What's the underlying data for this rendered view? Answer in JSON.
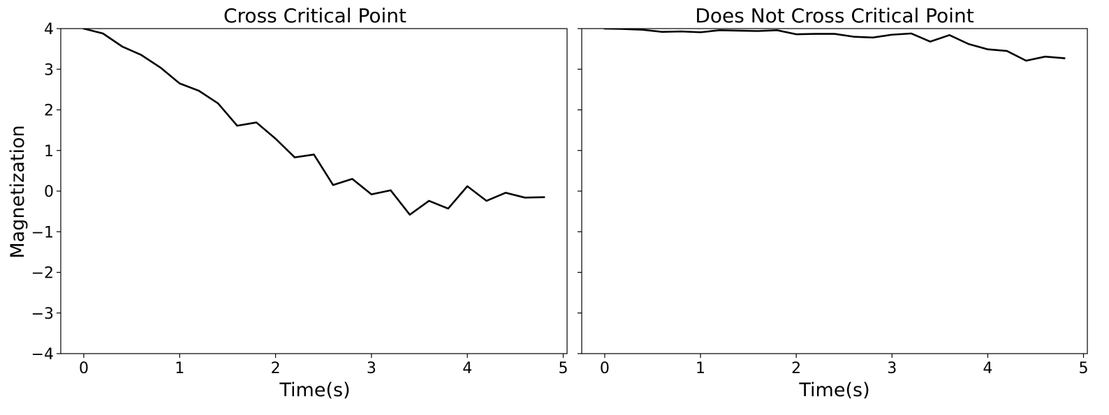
{
  "chart_data": [
    {
      "type": "line",
      "title": "Cross Critical Point",
      "xlabel": "Time(s)",
      "ylabel": "Magnetization",
      "xlim": [
        -0.24,
        5.04
      ],
      "ylim": [
        -4,
        4
      ],
      "xticks": [
        "0",
        "1",
        "2",
        "3",
        "4",
        "5"
      ],
      "yticks": [
        "−4",
        "−3",
        "−2",
        "−1",
        "0",
        "1",
        "2",
        "3",
        "4"
      ],
      "grid": false,
      "series": [
        {
          "color": "#000000",
          "x": [
            0,
            0.2,
            0.4,
            0.6,
            0.8,
            1.0,
            1.2,
            1.4,
            1.6,
            1.8,
            2.0,
            2.2,
            2.4,
            2.6,
            2.8,
            3.0,
            3.2,
            3.4,
            3.6,
            3.8,
            4.0,
            4.2,
            4.4,
            4.6,
            4.8
          ],
          "y": [
            4.0,
            3.88,
            3.56,
            3.35,
            3.04,
            2.65,
            2.47,
            2.16,
            1.61,
            1.69,
            1.29,
            0.83,
            0.9,
            0.15,
            0.3,
            -0.08,
            0.02,
            -0.58,
            -0.24,
            -0.43,
            0.12,
            -0.24,
            -0.04,
            -0.16,
            -0.15
          ]
        }
      ]
    },
    {
      "type": "line",
      "title": "Does Not Cross Critical Point",
      "xlabel": "Time(s)",
      "ylabel": "",
      "xlim": [
        -0.24,
        5.04
      ],
      "ylim": [
        -4,
        4
      ],
      "xticks": [
        "0",
        "1",
        "2",
        "3",
        "4",
        "5"
      ],
      "yticks": [],
      "grid": false,
      "series": [
        {
          "color": "#000000",
          "x": [
            0,
            0.2,
            0.4,
            0.6,
            0.8,
            1.0,
            1.2,
            1.4,
            1.6,
            1.8,
            2.0,
            2.2,
            2.4,
            2.6,
            2.8,
            3.0,
            3.2,
            3.4,
            3.6,
            3.8,
            4.0,
            4.2,
            4.4,
            4.6,
            4.8
          ],
          "y": [
            4.0,
            3.99,
            3.97,
            3.92,
            3.93,
            3.91,
            3.96,
            3.95,
            3.94,
            3.96,
            3.86,
            3.87,
            3.87,
            3.8,
            3.78,
            3.85,
            3.88,
            3.68,
            3.84,
            3.62,
            3.49,
            3.45,
            3.21,
            3.31,
            3.27
          ]
        }
      ]
    }
  ]
}
